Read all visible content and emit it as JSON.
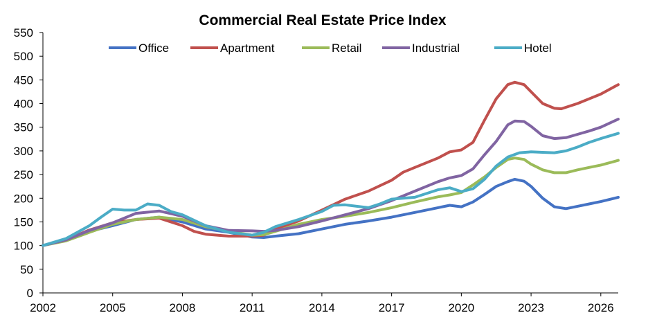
{
  "chart_data": {
    "type": "line",
    "title": "Commercial Real Estate Price Index",
    "xlabel": "",
    "ylabel": "",
    "xlim": [
      2002,
      2026.75
    ],
    "ylim": [
      0,
      550
    ],
    "x_ticks": [
      2002,
      2005,
      2008,
      2011,
      2014,
      2017,
      2020,
      2023,
      2026
    ],
    "y_ticks": [
      0,
      50,
      100,
      150,
      200,
      250,
      300,
      350,
      400,
      450,
      500,
      550
    ],
    "grid": false,
    "legend_position": "top",
    "series": [
      {
        "name": "Office",
        "color": "#4472C4",
        "points": [
          [
            2002,
            100
          ],
          [
            2003,
            112
          ],
          [
            2004,
            130
          ],
          [
            2005,
            142
          ],
          [
            2006,
            155
          ],
          [
            2007,
            160
          ],
          [
            2008,
            150
          ],
          [
            2009,
            135
          ],
          [
            2010,
            128
          ],
          [
            2011,
            118
          ],
          [
            2011.5,
            117
          ],
          [
            2012,
            120
          ],
          [
            2013,
            125
          ],
          [
            2014,
            135
          ],
          [
            2015,
            145
          ],
          [
            2016,
            152
          ],
          [
            2017,
            160
          ],
          [
            2018,
            170
          ],
          [
            2019,
            180
          ],
          [
            2019.5,
            185
          ],
          [
            2020,
            182
          ],
          [
            2020.5,
            192
          ],
          [
            2021,
            208
          ],
          [
            2021.5,
            225
          ],
          [
            2022,
            235
          ],
          [
            2022.3,
            240
          ],
          [
            2022.7,
            236
          ],
          [
            2023,
            225
          ],
          [
            2023.5,
            200
          ],
          [
            2024,
            182
          ],
          [
            2024.5,
            178
          ],
          [
            2025,
            183
          ],
          [
            2025.5,
            188
          ],
          [
            2026,
            193
          ],
          [
            2026.75,
            202
          ]
        ]
      },
      {
        "name": "Apartment",
        "color": "#C0504D",
        "points": [
          [
            2002,
            100
          ],
          [
            2003,
            112
          ],
          [
            2004,
            133
          ],
          [
            2005,
            148
          ],
          [
            2006,
            155
          ],
          [
            2007,
            158
          ],
          [
            2008,
            142
          ],
          [
            2008.5,
            130
          ],
          [
            2009,
            124
          ],
          [
            2010,
            120
          ],
          [
            2011,
            120
          ],
          [
            2011.5,
            122
          ],
          [
            2012,
            135
          ],
          [
            2013,
            152
          ],
          [
            2014,
            175
          ],
          [
            2015,
            198
          ],
          [
            2016,
            215
          ],
          [
            2017,
            238
          ],
          [
            2017.5,
            255
          ],
          [
            2018,
            265
          ],
          [
            2019,
            285
          ],
          [
            2019.5,
            298
          ],
          [
            2020,
            302
          ],
          [
            2020.5,
            318
          ],
          [
            2021,
            365
          ],
          [
            2021.5,
            410
          ],
          [
            2022,
            440
          ],
          [
            2022.3,
            445
          ],
          [
            2022.7,
            440
          ],
          [
            2023,
            425
          ],
          [
            2023.5,
            400
          ],
          [
            2024,
            390
          ],
          [
            2024.3,
            389
          ],
          [
            2025,
            400
          ],
          [
            2025.5,
            410
          ],
          [
            2026,
            420
          ],
          [
            2026.75,
            440
          ]
        ]
      },
      {
        "name": "Retail",
        "color": "#9BBB59",
        "points": [
          [
            2002,
            100
          ],
          [
            2003,
            110
          ],
          [
            2004,
            128
          ],
          [
            2005,
            145
          ],
          [
            2006,
            155
          ],
          [
            2007,
            160
          ],
          [
            2008,
            155
          ],
          [
            2009,
            140
          ],
          [
            2010,
            130
          ],
          [
            2011,
            122
          ],
          [
            2011.5,
            123
          ],
          [
            2012,
            130
          ],
          [
            2013,
            145
          ],
          [
            2014,
            155
          ],
          [
            2015,
            162
          ],
          [
            2016,
            170
          ],
          [
            2017,
            180
          ],
          [
            2018,
            192
          ],
          [
            2019,
            203
          ],
          [
            2019.5,
            207
          ],
          [
            2020,
            212
          ],
          [
            2020.5,
            228
          ],
          [
            2021,
            245
          ],
          [
            2021.5,
            265
          ],
          [
            2022,
            282
          ],
          [
            2022.3,
            285
          ],
          [
            2022.7,
            282
          ],
          [
            2023,
            272
          ],
          [
            2023.5,
            260
          ],
          [
            2024,
            254
          ],
          [
            2024.5,
            254
          ],
          [
            2025,
            260
          ],
          [
            2025.5,
            265
          ],
          [
            2026,
            270
          ],
          [
            2026.75,
            280
          ]
        ]
      },
      {
        "name": "Industrial",
        "color": "#8064A2",
        "points": [
          [
            2002,
            100
          ],
          [
            2003,
            112
          ],
          [
            2004,
            132
          ],
          [
            2005,
            148
          ],
          [
            2006,
            168
          ],
          [
            2007,
            173
          ],
          [
            2008,
            162
          ],
          [
            2009,
            142
          ],
          [
            2010,
            132
          ],
          [
            2011,
            131
          ],
          [
            2011.5,
            130
          ],
          [
            2012,
            132
          ],
          [
            2013,
            140
          ],
          [
            2014,
            152
          ],
          [
            2015,
            165
          ],
          [
            2016,
            178
          ],
          [
            2017,
            195
          ],
          [
            2018,
            215
          ],
          [
            2019,
            235
          ],
          [
            2019.5,
            243
          ],
          [
            2020,
            248
          ],
          [
            2020.5,
            262
          ],
          [
            2021,
            292
          ],
          [
            2021.5,
            320
          ],
          [
            2022,
            355
          ],
          [
            2022.3,
            363
          ],
          [
            2022.7,
            362
          ],
          [
            2023,
            352
          ],
          [
            2023.5,
            332
          ],
          [
            2024,
            326
          ],
          [
            2024.5,
            328
          ],
          [
            2025,
            335
          ],
          [
            2025.5,
            342
          ],
          [
            2026,
            350
          ],
          [
            2026.75,
            367
          ]
        ]
      },
      {
        "name": "Hotel",
        "color": "#4BACC6",
        "points": [
          [
            2002,
            100
          ],
          [
            2003,
            115
          ],
          [
            2004,
            142
          ],
          [
            2004.5,
            160
          ],
          [
            2005,
            177
          ],
          [
            2005.5,
            175
          ],
          [
            2006,
            175
          ],
          [
            2006.5,
            188
          ],
          [
            2007,
            185
          ],
          [
            2007.5,
            172
          ],
          [
            2008,
            165
          ],
          [
            2009,
            142
          ],
          [
            2010,
            128
          ],
          [
            2011,
            122
          ],
          [
            2011.5,
            128
          ],
          [
            2012,
            140
          ],
          [
            2013,
            155
          ],
          [
            2014,
            172
          ],
          [
            2014.5,
            185
          ],
          [
            2015,
            186
          ],
          [
            2016,
            180
          ],
          [
            2016.5,
            188
          ],
          [
            2017,
            198
          ],
          [
            2018,
            202
          ],
          [
            2019,
            218
          ],
          [
            2019.5,
            222
          ],
          [
            2020,
            214
          ],
          [
            2020.5,
            220
          ],
          [
            2021,
            240
          ],
          [
            2021.5,
            268
          ],
          [
            2022,
            287
          ],
          [
            2022.5,
            296
          ],
          [
            2023,
            298
          ],
          [
            2023.5,
            297
          ],
          [
            2024,
            296
          ],
          [
            2024.5,
            300
          ],
          [
            2025,
            308
          ],
          [
            2025.5,
            318
          ],
          [
            2026,
            326
          ],
          [
            2026.75,
            337
          ]
        ]
      }
    ]
  }
}
